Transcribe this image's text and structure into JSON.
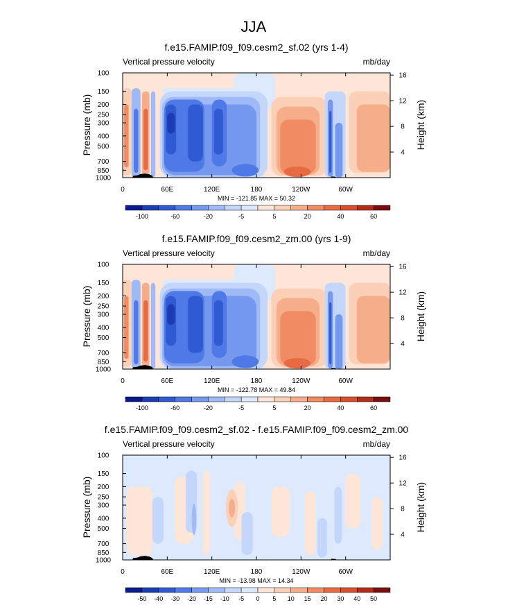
{
  "title": "JJA",
  "chart_data": [
    {
      "type": "heatmap",
      "title": "f.e15.FAMIP.f09_f09.cesm2_sf.02 (yrs 1-4)",
      "left_label": "Vertical pressure velocity",
      "right_label": "mb/day",
      "ylabel": "Pressure (mb)",
      "ylabel_right": "Height (km)",
      "x_ticks": [
        "0",
        "60E",
        "120E",
        "180",
        "120W",
        "60W"
      ],
      "y_ticks": [
        "100",
        "150",
        "200",
        "250",
        "300",
        "400",
        "500",
        "700",
        "850",
        "1000"
      ],
      "y_ticks_right": [
        "16",
        "12",
        "8",
        "4"
      ],
      "stats": "MIN = -121.85  MAX =  50.32",
      "colorbar_labels": [
        "-100",
        "-60",
        "-20",
        "-5",
        "5",
        "20",
        "40",
        "60"
      ]
    },
    {
      "type": "heatmap",
      "title": "f.e15.FAMIP.f09_f09.cesm2_zm.00 (yrs 1-9)",
      "left_label": "Vertical pressure velocity",
      "right_label": "mb/day",
      "ylabel": "Pressure (mb)",
      "ylabel_right": "Height (km)",
      "x_ticks": [
        "0",
        "60E",
        "120E",
        "180",
        "120W",
        "60W"
      ],
      "y_ticks": [
        "100",
        "150",
        "200",
        "250",
        "300",
        "400",
        "500",
        "700",
        "850",
        "1000"
      ],
      "y_ticks_right": [
        "16",
        "12",
        "8",
        "4"
      ],
      "stats": "MIN = -122.78  MAX =  49.84",
      "colorbar_labels": [
        "-100",
        "-60",
        "-20",
        "-5",
        "5",
        "20",
        "40",
        "60"
      ]
    },
    {
      "type": "heatmap",
      "title": "f.e15.FAMIP.f09_f09.cesm2_sf.02 - f.e15.FAMIP.f09_f09.cesm2_zm.00",
      "left_label": "Vertical pressure velocity",
      "right_label": "mb/day",
      "ylabel": "Pressure (mb)",
      "ylabel_right": "Height (km)",
      "x_ticks": [
        "0",
        "60E",
        "120E",
        "180",
        "120W",
        "60W"
      ],
      "y_ticks": [
        "100",
        "150",
        "200",
        "250",
        "300",
        "400",
        "500",
        "700",
        "850",
        "1000"
      ],
      "y_ticks_right": [
        "16",
        "12",
        "8",
        "4"
      ],
      "stats": "MIN = -13.98  MAX =  14.34",
      "colorbar_labels": [
        "-50",
        "-40",
        "-30",
        "-20",
        "-15",
        "-10",
        "-5",
        "0",
        "5",
        "10",
        "15",
        "20",
        "30",
        "40",
        "50"
      ]
    }
  ],
  "colors": {
    "bar16": [
      "#0a1a8c",
      "#1a3cb4",
      "#2f5ad2",
      "#4f79e6",
      "#7699f0",
      "#9fbaf7",
      "#c4d6fa",
      "#dde9fc",
      "#fde6d8",
      "#fbd0b6",
      "#f6ad8a",
      "#f08b63",
      "#e86a42",
      "#d94e2b",
      "#b52d1a",
      "#7a0d0d"
    ],
    "water": "#dde9fc",
    "terrain": "#000000"
  }
}
